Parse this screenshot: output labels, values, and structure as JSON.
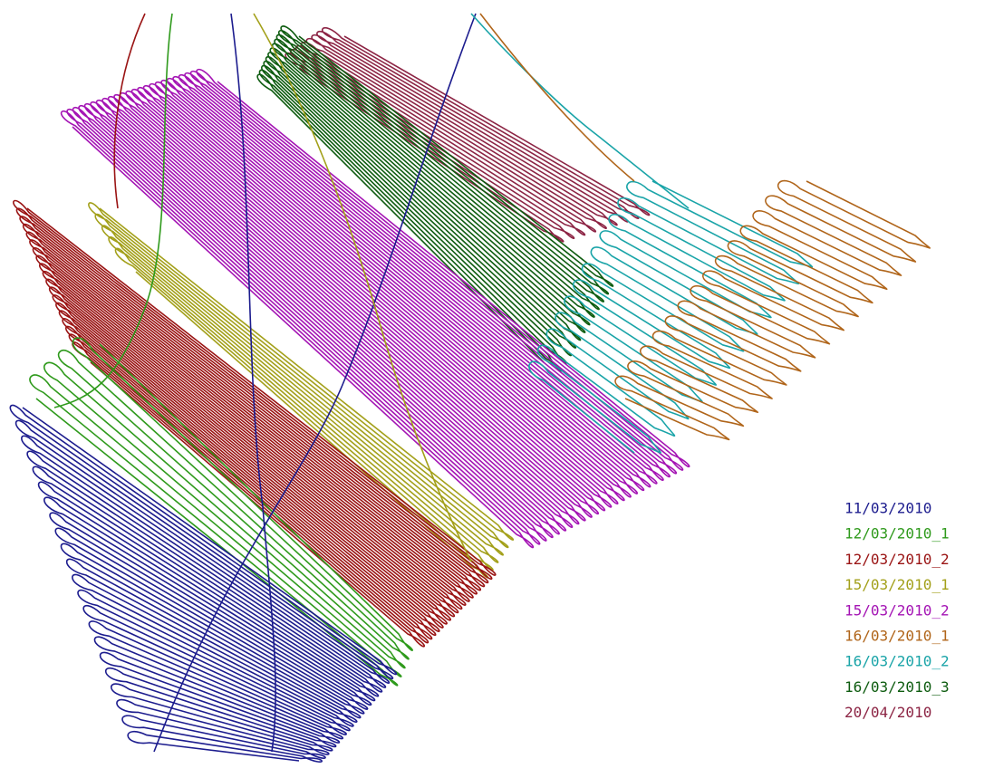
{
  "legend": {
    "items": [
      {
        "label": "11/03/2010",
        "color": "#1c1c8e"
      },
      {
        "label": "12/03/2010_1",
        "color": "#2f9a1c"
      },
      {
        "label": "12/03/2010_2",
        "color": "#9a1414"
      },
      {
        "label": "15/03/2010_1",
        "color": "#a3a01a"
      },
      {
        "label": "15/03/2010_2",
        "color": "#a414b4"
      },
      {
        "label": "16/03/2010_1",
        "color": "#b0651a"
      },
      {
        "label": "16/03/2010_2",
        "color": "#1aa4a8"
      },
      {
        "label": "16/03/2010_3",
        "color": "#0e5c10"
      },
      {
        "label": "20/04/2010",
        "color": "#8c2444"
      }
    ]
  }
}
